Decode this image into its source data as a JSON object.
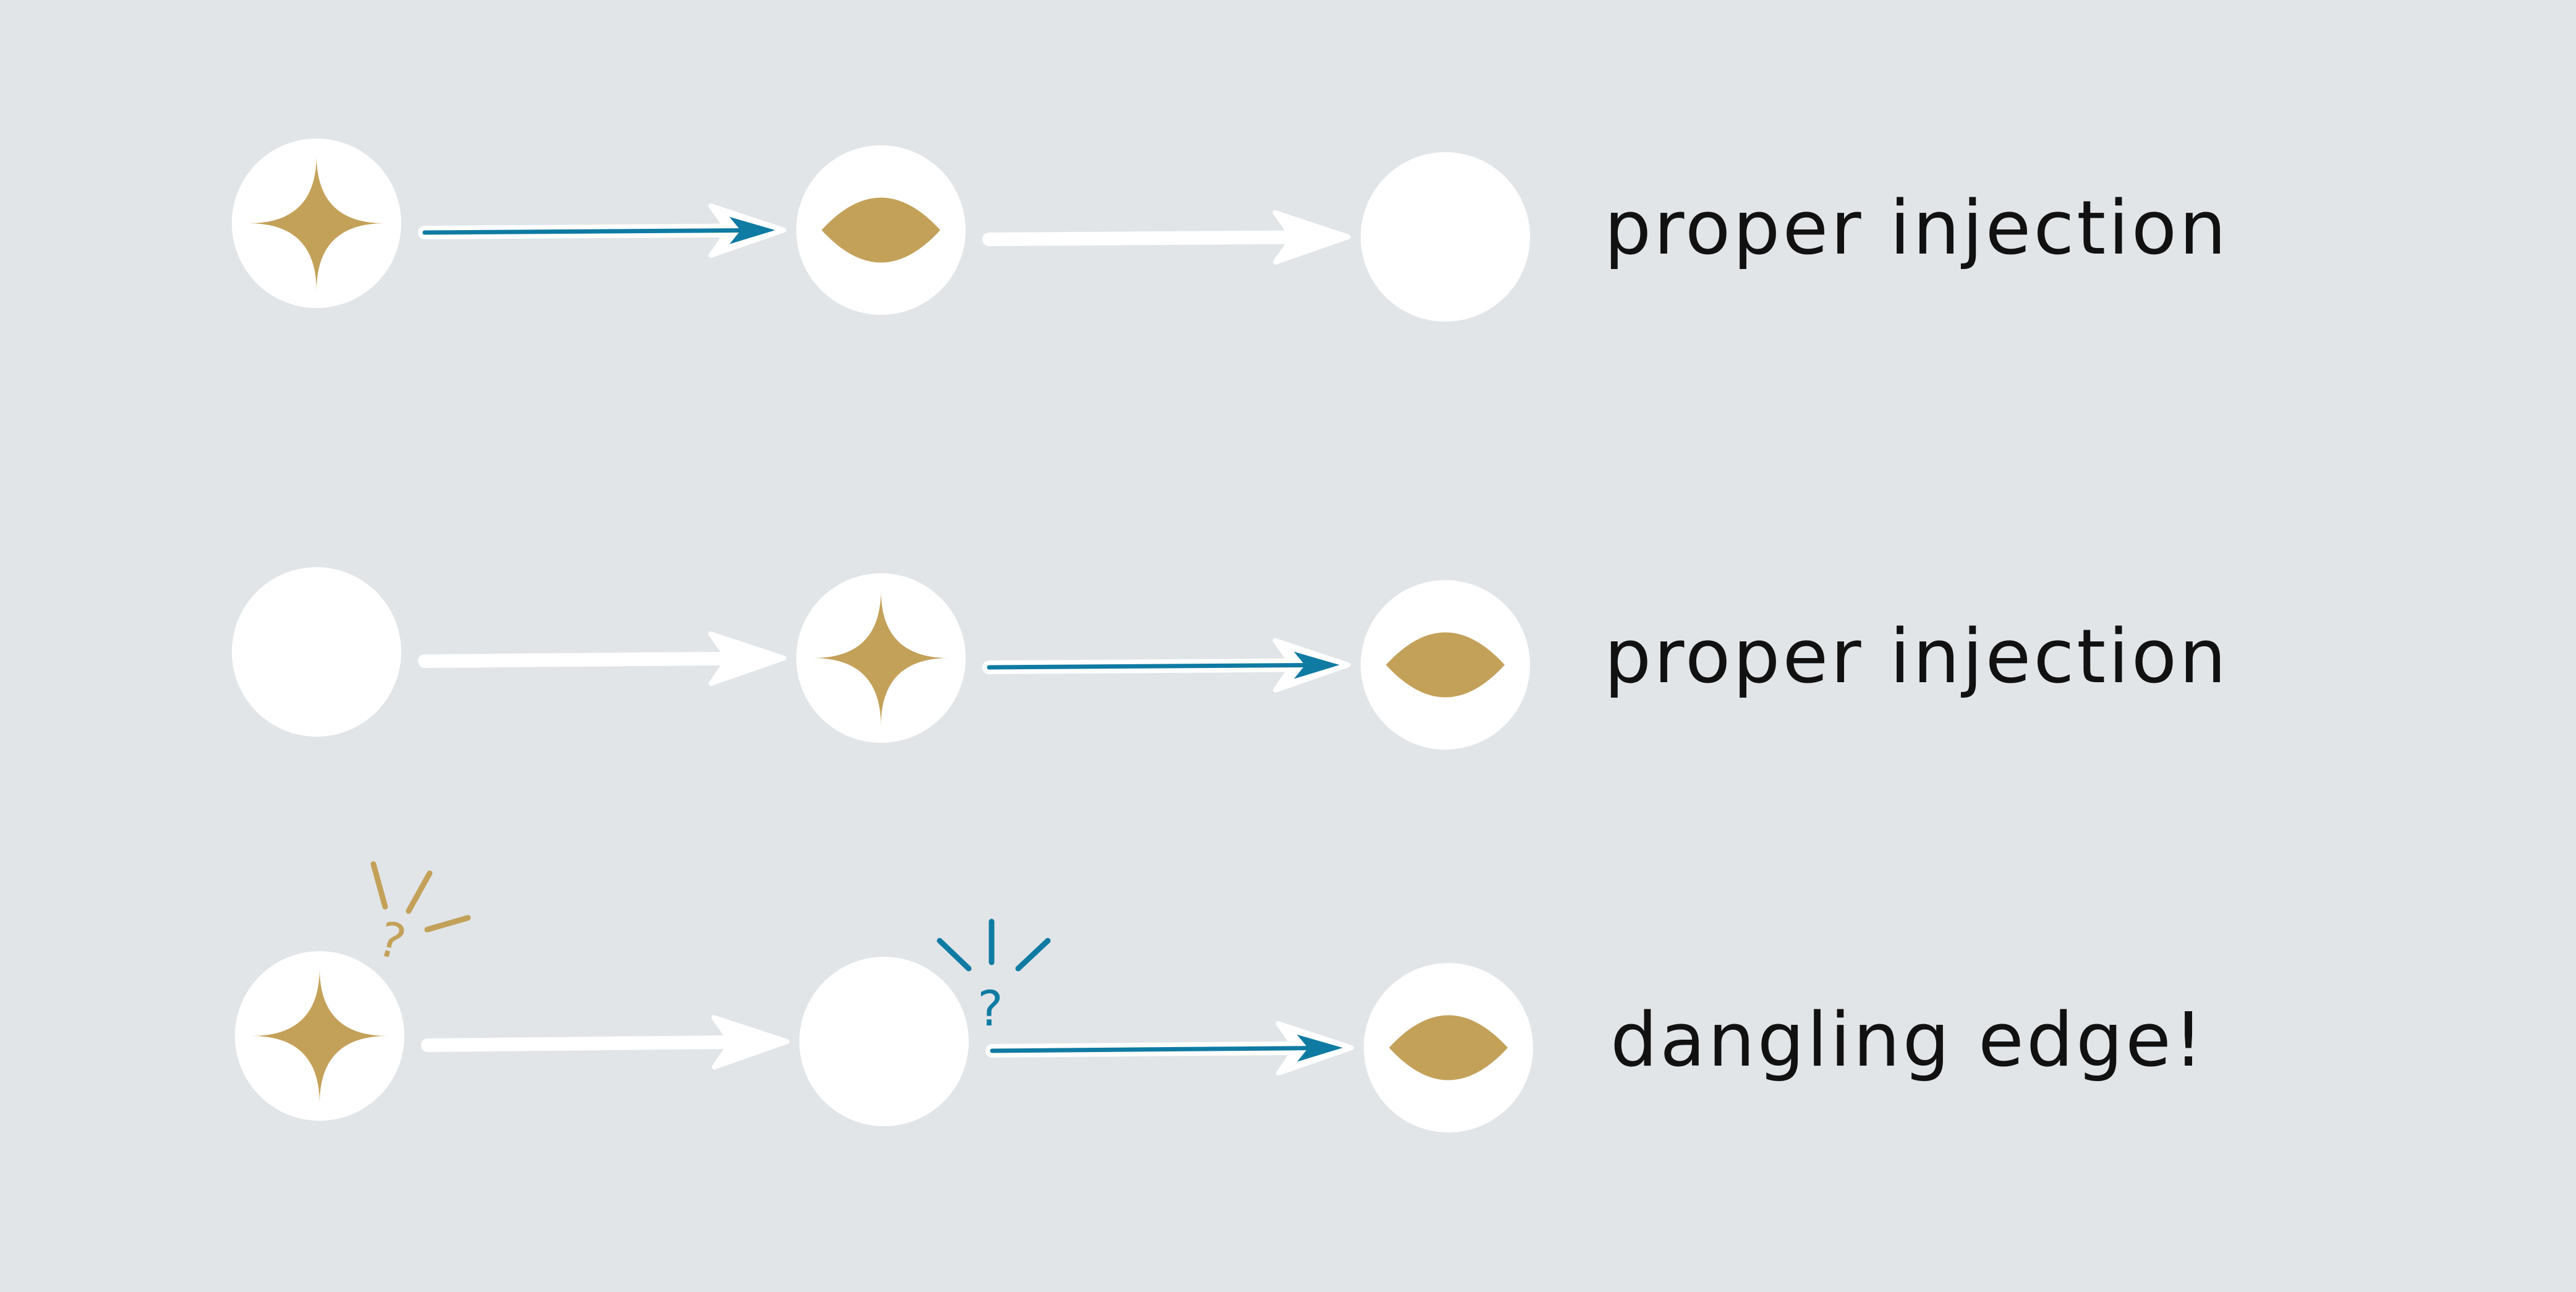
{
  "colors": {
    "background": "#e1e5e8",
    "node": "#ffffff",
    "gold": "#c3a159",
    "blue": "#0f7ba3",
    "text": "#111111"
  },
  "rows": [
    {
      "label": "proper injection",
      "nodes": [
        "star",
        "eye",
        "empty"
      ],
      "edges": [
        "highlighted",
        "plain"
      ],
      "question_marks": []
    },
    {
      "label": "proper injection",
      "nodes": [
        "empty",
        "star",
        "eye"
      ],
      "edges": [
        "plain",
        "highlighted"
      ],
      "question_marks": []
    },
    {
      "label": "dangling edge!",
      "nodes": [
        "star",
        "empty",
        "eye"
      ],
      "edges": [
        "plain",
        "highlighted"
      ],
      "question_marks": [
        {
          "text": "?",
          "color": "gold"
        },
        {
          "text": "?",
          "color": "blue"
        }
      ]
    }
  ]
}
